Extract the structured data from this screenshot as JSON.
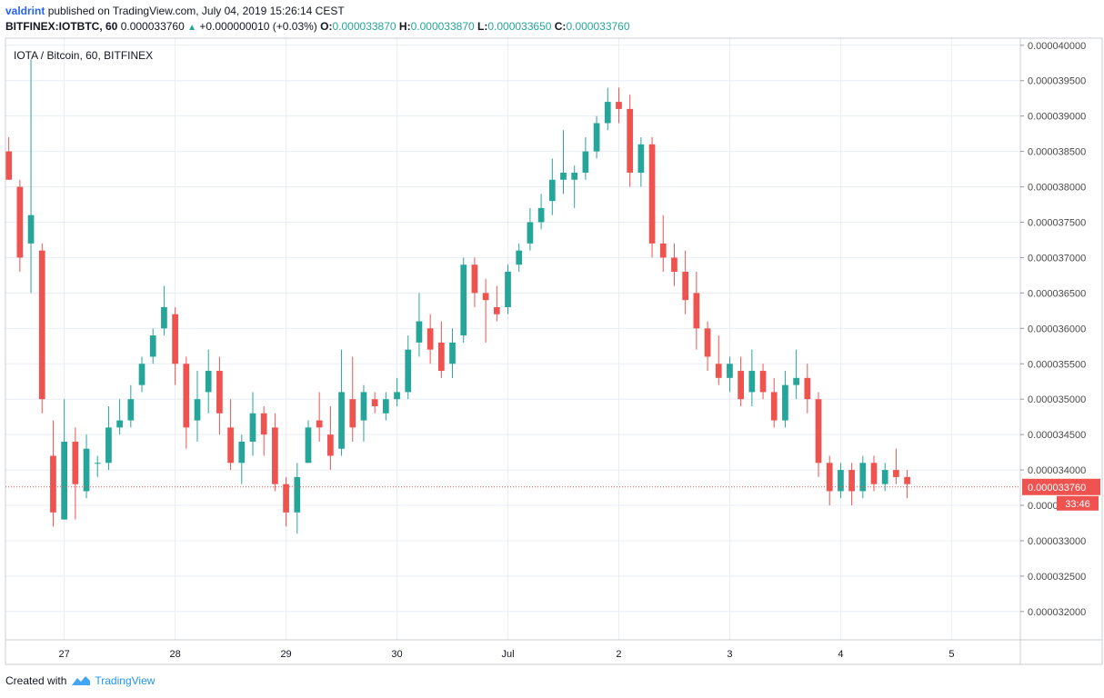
{
  "header": {
    "author": "valdrint",
    "published_text": "published on TradingView.com, July 04, 2019 15:26:14 CEST",
    "symbol": "BITFINEX:IOTBTC, 60",
    "last": "0.000033760",
    "change": "+0.000000010 (+0.03%)",
    "open_label": "O:",
    "open": "0.000033870",
    "high_label": "H:",
    "high": "0.000033870",
    "low_label": "L:",
    "low": "0.000033650",
    "close_label": "C:",
    "close": "0.000033760"
  },
  "footer": {
    "created_with": "Created with",
    "brand": "TradingView"
  },
  "colors": {
    "up": "#26a69a",
    "down": "#ef5350",
    "grid": "#e8eef3",
    "price_line": "#ef5350",
    "axis_text": "#4a4a4a"
  },
  "chart_data": {
    "type": "candlestick",
    "title": "IOTA / Bitcoin, 60, BITFINEX",
    "timeframe": "60",
    "ylim": [
      3.16e-05,
      4.01e-05
    ],
    "y_ticks": [
      "0.000032000",
      "0.000032500",
      "0.000033000",
      "0.000033500",
      "0.000034000",
      "0.000034500",
      "0.000035000",
      "0.000035500",
      "0.000036000",
      "0.000036500",
      "0.000037000",
      "0.000037500",
      "0.000038000",
      "0.000038500",
      "0.000039000",
      "0.000039500",
      "0.000040000"
    ],
    "x_ticks": [
      {
        "label": "27",
        "day": 27
      },
      {
        "label": "28",
        "day": 28
      },
      {
        "label": "29",
        "day": 29
      },
      {
        "label": "30",
        "day": 30
      },
      {
        "label": "Jul",
        "day": 31
      },
      {
        "label": "2",
        "day": 32
      },
      {
        "label": "3",
        "day": 33
      },
      {
        "label": "4",
        "day": 34
      },
      {
        "label": "5",
        "day": 35
      }
    ],
    "x_range": [
      26.47,
      35.62
    ],
    "last_price": "0.000033760",
    "countdown": "33:46",
    "candles": [
      {
        "t": 26.5,
        "o": 3.85e-05,
        "h": 3.87e-05,
        "l": 3.81e-05,
        "c": 3.81e-05
      },
      {
        "t": 26.6,
        "o": 3.8e-05,
        "h": 3.81e-05,
        "l": 3.68e-05,
        "c": 3.7e-05
      },
      {
        "t": 26.7,
        "o": 3.72e-05,
        "h": 3.98e-05,
        "l": 3.65e-05,
        "c": 3.76e-05
      },
      {
        "t": 26.8,
        "o": 3.71e-05,
        "h": 3.72e-05,
        "l": 3.48e-05,
        "c": 3.5e-05
      },
      {
        "t": 26.9,
        "o": 3.42e-05,
        "h": 3.47e-05,
        "l": 3.32e-05,
        "c": 3.34e-05
      },
      {
        "t": 27.0,
        "o": 3.33e-05,
        "h": 3.5e-05,
        "l": 3.33e-05,
        "c": 3.44e-05
      },
      {
        "t": 27.1,
        "o": 3.44e-05,
        "h": 3.46e-05,
        "l": 3.33e-05,
        "c": 3.38e-05
      },
      {
        "t": 27.2,
        "o": 3.37e-05,
        "h": 3.45e-05,
        "l": 3.36e-05,
        "c": 3.43e-05
      },
      {
        "t": 27.3,
        "o": 3.41e-05,
        "h": 3.42e-05,
        "l": 3.39e-05,
        "c": 3.41e-05
      },
      {
        "t": 27.4,
        "o": 3.41e-05,
        "h": 3.49e-05,
        "l": 3.4e-05,
        "c": 3.46e-05
      },
      {
        "t": 27.5,
        "o": 3.46e-05,
        "h": 3.5e-05,
        "l": 3.45e-05,
        "c": 3.47e-05
      },
      {
        "t": 27.6,
        "o": 3.47e-05,
        "h": 3.52e-05,
        "l": 3.46e-05,
        "c": 3.5e-05
      },
      {
        "t": 27.7,
        "o": 3.52e-05,
        "h": 3.56e-05,
        "l": 3.51e-05,
        "c": 3.55e-05
      },
      {
        "t": 27.8,
        "o": 3.56e-05,
        "h": 3.6e-05,
        "l": 3.55e-05,
        "c": 3.59e-05
      },
      {
        "t": 27.9,
        "o": 3.6e-05,
        "h": 3.66e-05,
        "l": 3.59e-05,
        "c": 3.63e-05
      },
      {
        "t": 28.0,
        "o": 3.62e-05,
        "h": 3.63e-05,
        "l": 3.52e-05,
        "c": 3.55e-05
      },
      {
        "t": 28.1,
        "o": 3.55e-05,
        "h": 3.56e-05,
        "l": 3.43e-05,
        "c": 3.46e-05
      },
      {
        "t": 28.2,
        "o": 3.47e-05,
        "h": 3.54e-05,
        "l": 3.44e-05,
        "c": 3.5e-05
      },
      {
        "t": 28.3,
        "o": 3.51e-05,
        "h": 3.57e-05,
        "l": 3.48e-05,
        "c": 3.54e-05
      },
      {
        "t": 28.4,
        "o": 3.54e-05,
        "h": 3.56e-05,
        "l": 3.45e-05,
        "c": 3.48e-05
      },
      {
        "t": 28.5,
        "o": 3.46e-05,
        "h": 3.5e-05,
        "l": 3.4e-05,
        "c": 3.41e-05
      },
      {
        "t": 28.6,
        "o": 3.41e-05,
        "h": 3.45e-05,
        "l": 3.38e-05,
        "c": 3.44e-05
      },
      {
        "t": 28.7,
        "o": 3.44e-05,
        "h": 3.51e-05,
        "l": 3.42e-05,
        "c": 3.48e-05
      },
      {
        "t": 28.8,
        "o": 3.48e-05,
        "h": 3.49e-05,
        "l": 3.42e-05,
        "c": 3.45e-05
      },
      {
        "t": 28.9,
        "o": 3.46e-05,
        "h": 3.48e-05,
        "l": 3.37e-05,
        "c": 3.38e-05
      },
      {
        "t": 29.0,
        "o": 3.38e-05,
        "h": 3.39e-05,
        "l": 3.32e-05,
        "c": 3.34e-05
      },
      {
        "t": 29.1,
        "o": 3.34e-05,
        "h": 3.41e-05,
        "l": 3.31e-05,
        "c": 3.39e-05
      },
      {
        "t": 29.2,
        "o": 3.41e-05,
        "h": 3.47e-05,
        "l": 3.41e-05,
        "c": 3.46e-05
      },
      {
        "t": 29.3,
        "o": 3.47e-05,
        "h": 3.51e-05,
        "l": 3.44e-05,
        "c": 3.46e-05
      },
      {
        "t": 29.4,
        "o": 3.45e-05,
        "h": 3.49e-05,
        "l": 3.4e-05,
        "c": 3.42e-05
      },
      {
        "t": 29.5,
        "o": 3.43e-05,
        "h": 3.57e-05,
        "l": 3.42e-05,
        "c": 3.51e-05
      },
      {
        "t": 29.6,
        "o": 3.5e-05,
        "h": 3.56e-05,
        "l": 3.44e-05,
        "c": 3.46e-05
      },
      {
        "t": 29.7,
        "o": 3.47e-05,
        "h": 3.52e-05,
        "l": 3.44e-05,
        "c": 3.51e-05
      },
      {
        "t": 29.8,
        "o": 3.5e-05,
        "h": 3.51e-05,
        "l": 3.48e-05,
        "c": 3.49e-05
      },
      {
        "t": 29.9,
        "o": 3.48e-05,
        "h": 3.51e-05,
        "l": 3.47e-05,
        "c": 3.5e-05
      },
      {
        "t": 30.0,
        "o": 3.5e-05,
        "h": 3.53e-05,
        "l": 3.49e-05,
        "c": 3.51e-05
      },
      {
        "t": 30.1,
        "o": 3.51e-05,
        "h": 3.59e-05,
        "l": 3.5e-05,
        "c": 3.57e-05
      },
      {
        "t": 30.2,
        "o": 3.58e-05,
        "h": 3.65e-05,
        "l": 3.56e-05,
        "c": 3.61e-05
      },
      {
        "t": 30.3,
        "o": 3.6e-05,
        "h": 3.62e-05,
        "l": 3.55e-05,
        "c": 3.57e-05
      },
      {
        "t": 30.4,
        "o": 3.58e-05,
        "h": 3.61e-05,
        "l": 3.53e-05,
        "c": 3.54e-05
      },
      {
        "t": 30.5,
        "o": 3.55e-05,
        "h": 3.6e-05,
        "l": 3.53e-05,
        "c": 3.58e-05
      },
      {
        "t": 30.6,
        "o": 3.59e-05,
        "h": 3.7e-05,
        "l": 3.58e-05,
        "c": 3.69e-05
      },
      {
        "t": 30.7,
        "o": 3.69e-05,
        "h": 3.7e-05,
        "l": 3.63e-05,
        "c": 3.65e-05
      },
      {
        "t": 30.8,
        "o": 3.65e-05,
        "h": 3.67e-05,
        "l": 3.58e-05,
        "c": 3.64e-05
      },
      {
        "t": 30.9,
        "o": 3.63e-05,
        "h": 3.66e-05,
        "l": 3.61e-05,
        "c": 3.62e-05
      },
      {
        "t": 31.0,
        "o": 3.63e-05,
        "h": 3.69e-05,
        "l": 3.62e-05,
        "c": 3.68e-05
      },
      {
        "t": 31.1,
        "o": 3.69e-05,
        "h": 3.72e-05,
        "l": 3.68e-05,
        "c": 3.71e-05
      },
      {
        "t": 31.2,
        "o": 3.72e-05,
        "h": 3.77e-05,
        "l": 3.71e-05,
        "c": 3.75e-05
      },
      {
        "t": 31.3,
        "o": 3.75e-05,
        "h": 3.79e-05,
        "l": 3.74e-05,
        "c": 3.77e-05
      },
      {
        "t": 31.4,
        "o": 3.78e-05,
        "h": 3.84e-05,
        "l": 3.76e-05,
        "c": 3.81e-05
      },
      {
        "t": 31.5,
        "o": 3.81e-05,
        "h": 3.88e-05,
        "l": 3.79e-05,
        "c": 3.82e-05
      },
      {
        "t": 31.6,
        "o": 3.81e-05,
        "h": 3.83e-05,
        "l": 3.77e-05,
        "c": 3.82e-05
      },
      {
        "t": 31.7,
        "o": 3.82e-05,
        "h": 3.87e-05,
        "l": 3.81e-05,
        "c": 3.85e-05
      },
      {
        "t": 31.8,
        "o": 3.85e-05,
        "h": 3.9e-05,
        "l": 3.84e-05,
        "c": 3.89e-05
      },
      {
        "t": 31.9,
        "o": 3.89e-05,
        "h": 3.94e-05,
        "l": 3.88e-05,
        "c": 3.92e-05
      },
      {
        "t": 32.0,
        "o": 3.92e-05,
        "h": 3.94e-05,
        "l": 3.89e-05,
        "c": 3.91e-05
      },
      {
        "t": 32.1,
        "o": 3.91e-05,
        "h": 3.93e-05,
        "l": 3.8e-05,
        "c": 3.82e-05
      },
      {
        "t": 32.2,
        "o": 3.82e-05,
        "h": 3.87e-05,
        "l": 3.8e-05,
        "c": 3.86e-05
      },
      {
        "t": 32.3,
        "o": 3.86e-05,
        "h": 3.87e-05,
        "l": 3.7e-05,
        "c": 3.72e-05
      },
      {
        "t": 32.4,
        "o": 3.72e-05,
        "h": 3.76e-05,
        "l": 3.68e-05,
        "c": 3.7e-05
      },
      {
        "t": 32.5,
        "o": 3.7e-05,
        "h": 3.72e-05,
        "l": 3.66e-05,
        "c": 3.68e-05
      },
      {
        "t": 32.6,
        "o": 3.68e-05,
        "h": 3.71e-05,
        "l": 3.62e-05,
        "c": 3.64e-05
      },
      {
        "t": 32.7,
        "o": 3.65e-05,
        "h": 3.68e-05,
        "l": 3.57e-05,
        "c": 3.6e-05
      },
      {
        "t": 32.8,
        "o": 3.6e-05,
        "h": 3.61e-05,
        "l": 3.54e-05,
        "c": 3.56e-05
      },
      {
        "t": 32.9,
        "o": 3.55e-05,
        "h": 3.59e-05,
        "l": 3.52e-05,
        "c": 3.53e-05
      },
      {
        "t": 33.0,
        "o": 3.53e-05,
        "h": 3.56e-05,
        "l": 3.51e-05,
        "c": 3.55e-05
      },
      {
        "t": 33.1,
        "o": 3.54e-05,
        "h": 3.56e-05,
        "l": 3.49e-05,
        "c": 3.5e-05
      },
      {
        "t": 33.2,
        "o": 3.51e-05,
        "h": 3.57e-05,
        "l": 3.49e-05,
        "c": 3.54e-05
      },
      {
        "t": 33.3,
        "o": 3.54e-05,
        "h": 3.55e-05,
        "l": 3.5e-05,
        "c": 3.51e-05
      },
      {
        "t": 33.4,
        "o": 3.51e-05,
        "h": 3.53e-05,
        "l": 3.46e-05,
        "c": 3.47e-05
      },
      {
        "t": 33.5,
        "o": 3.47e-05,
        "h": 3.54e-05,
        "l": 3.46e-05,
        "c": 3.52e-05
      },
      {
        "t": 33.6,
        "o": 3.52e-05,
        "h": 3.57e-05,
        "l": 3.5e-05,
        "c": 3.53e-05
      },
      {
        "t": 33.7,
        "o": 3.53e-05,
        "h": 3.55e-05,
        "l": 3.48e-05,
        "c": 3.5e-05
      },
      {
        "t": 33.8,
        "o": 3.5e-05,
        "h": 3.51e-05,
        "l": 3.39e-05,
        "c": 3.41e-05
      },
      {
        "t": 33.9,
        "o": 3.41e-05,
        "h": 3.42e-05,
        "l": 3.35e-05,
        "c": 3.37e-05
      },
      {
        "t": 34.0,
        "o": 3.37e-05,
        "h": 3.41e-05,
        "l": 3.36e-05,
        "c": 3.4e-05
      },
      {
        "t": 34.1,
        "o": 3.4e-05,
        "h": 3.41e-05,
        "l": 3.35e-05,
        "c": 3.37e-05
      },
      {
        "t": 34.2,
        "o": 3.37e-05,
        "h": 3.42e-05,
        "l": 3.36e-05,
        "c": 3.41e-05
      },
      {
        "t": 34.3,
        "o": 3.41e-05,
        "h": 3.42e-05,
        "l": 3.37e-05,
        "c": 3.38e-05
      },
      {
        "t": 34.4,
        "o": 3.38e-05,
        "h": 3.41e-05,
        "l": 3.37e-05,
        "c": 3.4e-05
      },
      {
        "t": 34.5,
        "o": 3.4e-05,
        "h": 3.43e-05,
        "l": 3.38e-05,
        "c": 3.39e-05
      },
      {
        "t": 34.6,
        "o": 3.39e-05,
        "h": 3.4e-05,
        "l": 3.36e-05,
        "c": 3.38e-05
      }
    ]
  }
}
